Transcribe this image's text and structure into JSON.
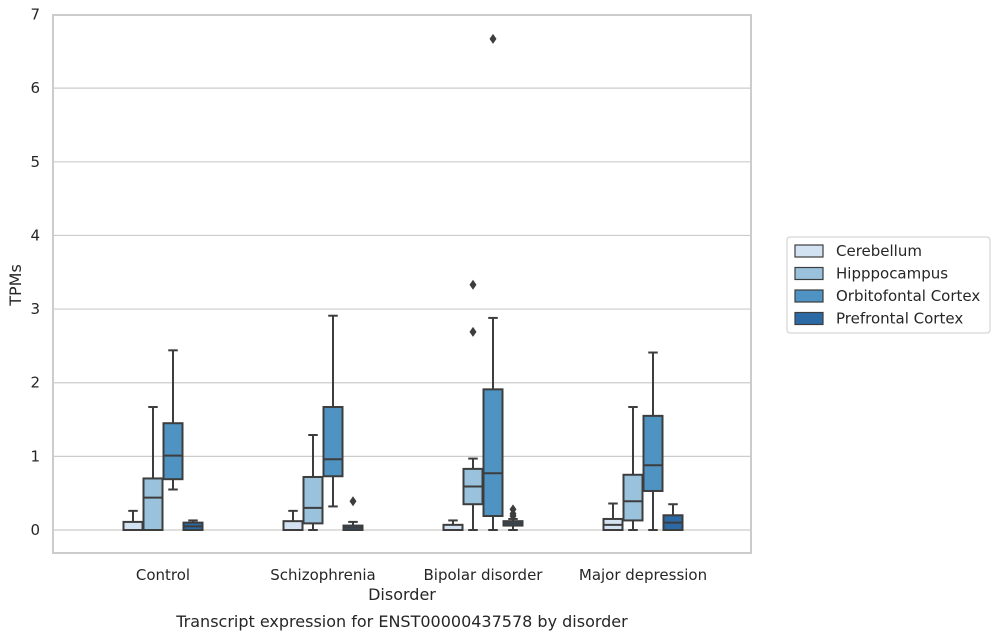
{
  "chart_data": {
    "type": "box",
    "xlabel": "Disorder",
    "ylabel": "TPMs",
    "caption": "Transcript expression for ENST00000437578 by disorder",
    "ylim": [
      -0.32,
      7.0
    ],
    "yticks": [
      0,
      1,
      2,
      3,
      4,
      5,
      6,
      7
    ],
    "grid": "horizontal",
    "legend_placement": "right",
    "categories": [
      "Control",
      "Schizophrenia",
      "Bipolar disorder",
      "Major depression"
    ],
    "series": [
      {
        "name": "Cerebellum",
        "color": "#d3e2f2",
        "boxes": [
          {
            "whisker_low": 0.0,
            "q1": 0.0,
            "median": 0.0,
            "q3": 0.11,
            "whisker_high": 0.26,
            "outliers": []
          },
          {
            "whisker_low": 0.0,
            "q1": 0.0,
            "median": 0.0,
            "q3": 0.12,
            "whisker_high": 0.26,
            "outliers": []
          },
          {
            "whisker_low": 0.0,
            "q1": 0.0,
            "median": 0.0,
            "q3": 0.07,
            "whisker_high": 0.13,
            "outliers": []
          },
          {
            "whisker_low": 0.0,
            "q1": 0.0,
            "median": 0.07,
            "q3": 0.15,
            "whisker_high": 0.36,
            "outliers": []
          }
        ]
      },
      {
        "name": "Hipppocampus",
        "color": "#9ac2dc",
        "boxes": [
          {
            "whisker_low": 0.0,
            "q1": 0.0,
            "median": 0.44,
            "q3": 0.7,
            "whisker_high": 1.67,
            "outliers": []
          },
          {
            "whisker_low": 0.0,
            "q1": 0.09,
            "median": 0.3,
            "q3": 0.72,
            "whisker_high": 1.29,
            "outliers": []
          },
          {
            "whisker_low": 0.0,
            "q1": 0.35,
            "median": 0.59,
            "q3": 0.83,
            "whisker_high": 0.97,
            "outliers": [
              2.69,
              3.33
            ]
          },
          {
            "whisker_low": 0.0,
            "q1": 0.13,
            "median": 0.39,
            "q3": 0.75,
            "whisker_high": 1.67,
            "outliers": []
          }
        ]
      },
      {
        "name": "Orbitofontal Cortex",
        "color": "#4f93c3",
        "boxes": [
          {
            "whisker_low": 0.55,
            "q1": 0.69,
            "median": 1.01,
            "q3": 1.45,
            "whisker_high": 2.44,
            "outliers": []
          },
          {
            "whisker_low": 0.32,
            "q1": 0.73,
            "median": 0.96,
            "q3": 1.67,
            "whisker_high": 2.91,
            "outliers": []
          },
          {
            "whisker_low": 0.0,
            "q1": 0.19,
            "median": 0.77,
            "q3": 1.91,
            "whisker_high": 2.88,
            "outliers": [
              6.67
            ]
          },
          {
            "whisker_low": 0.0,
            "q1": 0.53,
            "median": 0.88,
            "q3": 1.55,
            "whisker_high": 2.41,
            "outliers": []
          }
        ]
      },
      {
        "name": "Prefrontal Cortex",
        "color": "#2c6aa6",
        "boxes": [
          {
            "whisker_low": 0.0,
            "q1": 0.0,
            "median": 0.05,
            "q3": 0.1,
            "whisker_high": 0.13,
            "outliers": []
          },
          {
            "whisker_low": 0.0,
            "q1": 0.0,
            "median": 0.03,
            "q3": 0.06,
            "whisker_high": 0.11,
            "outliers": [
              0.39
            ]
          },
          {
            "whisker_low": 0.0,
            "q1": 0.06,
            "median": 0.09,
            "q3": 0.12,
            "whisker_high": 0.15,
            "outliers": [
              0.19,
              0.22,
              0.28
            ]
          },
          {
            "whisker_low": 0.0,
            "q1": 0.0,
            "median": 0.1,
            "q3": 0.2,
            "whisker_high": 0.35,
            "outliers": []
          }
        ]
      }
    ]
  }
}
